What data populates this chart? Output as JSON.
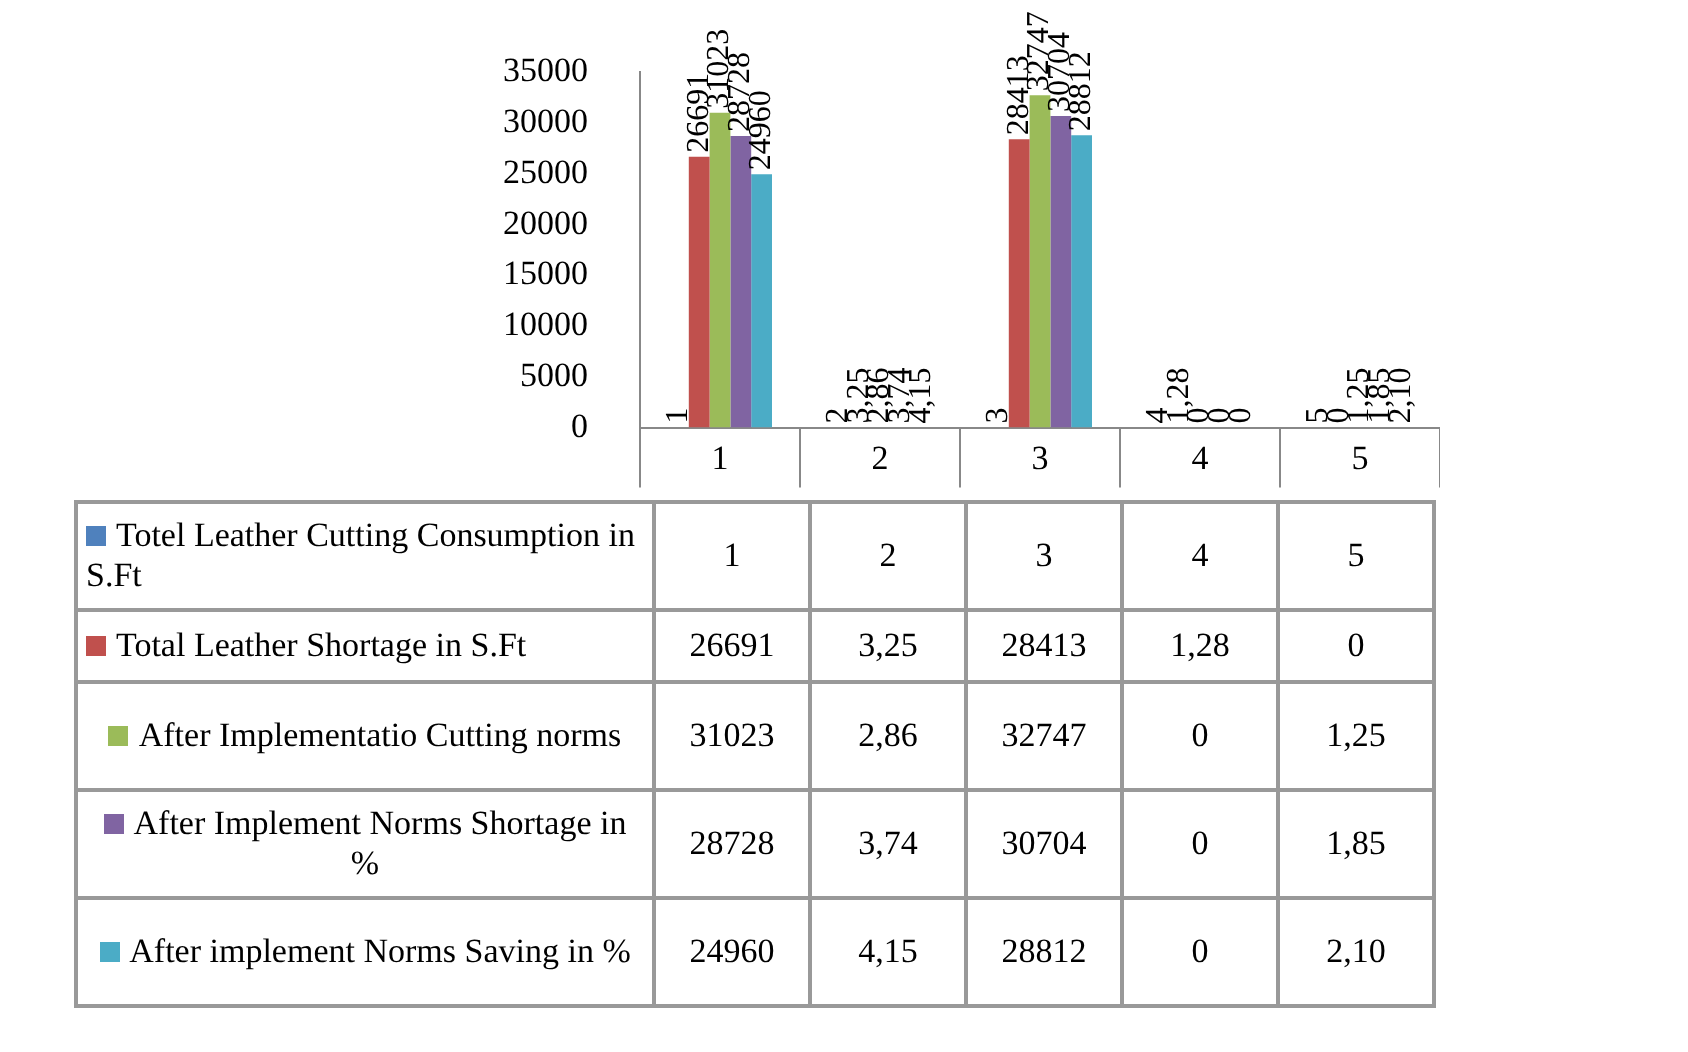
{
  "chart_data": {
    "type": "bar",
    "categories": [
      "1",
      "2",
      "3",
      "4",
      "5"
    ],
    "series": [
      {
        "name": "Totel Leather Cutting Consumption in S.Ft",
        "color": "#4f81bd",
        "values": [
          1,
          2,
          3,
          4,
          5
        ],
        "value_labels": [
          "1",
          "2",
          "3",
          "4",
          "5"
        ]
      },
      {
        "name": "Total Leather Shortage in S.Ft",
        "color": "#c0504d",
        "values": [
          26691,
          3.25,
          28413,
          1.28,
          0
        ],
        "value_labels": [
          "26691",
          "3,25",
          "28413",
          "1,28",
          "0"
        ]
      },
      {
        "name": "After Implementatio Cutting norms",
        "color": "#9bbb59",
        "values": [
          31023,
          2.86,
          32747,
          0,
          1.25
        ],
        "value_labels": [
          "31023",
          "2,86",
          "32747",
          "0",
          "1,25"
        ]
      },
      {
        "name": "After Implement Norms Shortage in %",
        "color": "#8064a2",
        "values": [
          28728,
          3.74,
          30704,
          0,
          1.85
        ],
        "value_labels": [
          "28728",
          "3,74",
          "30704",
          "0",
          "1,85"
        ]
      },
      {
        "name": "After implement Norms Saving in %",
        "color": "#4bacc6",
        "values": [
          24960,
          4.15,
          28812,
          0,
          2.1
        ],
        "value_labels": [
          "24960",
          "4,15",
          "28812",
          "0",
          "2,10"
        ]
      }
    ],
    "ylim": [
      0,
      35000
    ],
    "yticks": [
      0,
      5000,
      10000,
      15000,
      20000,
      25000,
      30000,
      35000
    ],
    "grid": false,
    "legend": "bottom"
  }
}
